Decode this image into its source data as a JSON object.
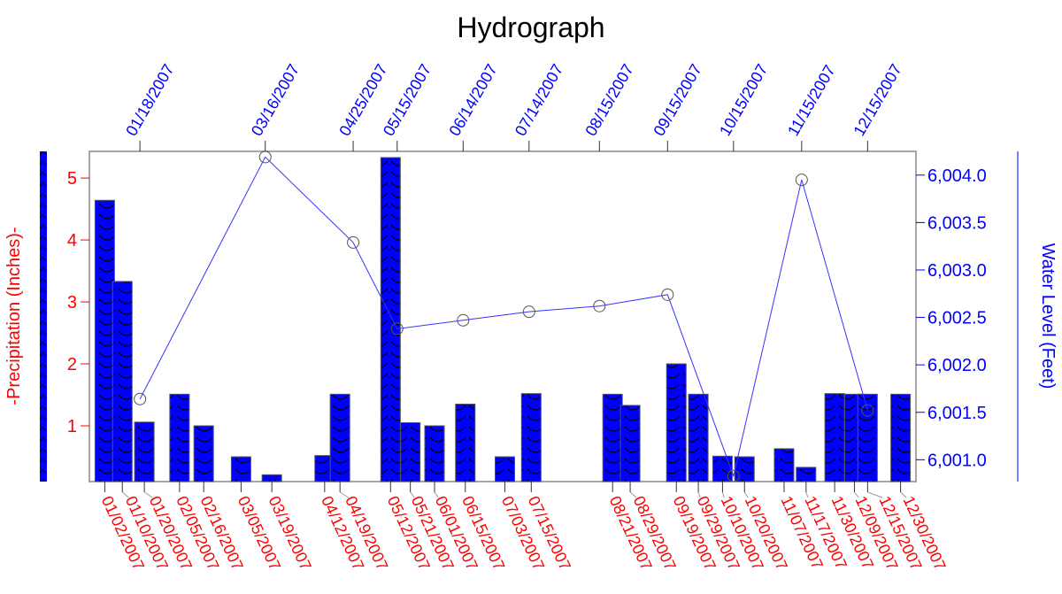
{
  "chart_data": {
    "type": "bar+line",
    "title": "Hydrograph",
    "xlim": [
      "2006-12-26",
      "2008-01-06"
    ],
    "precipitation": {
      "axis": "left",
      "ylabel": "-Precipitation (Inches)-",
      "ylim": [
        0.1,
        5.43
      ],
      "yticks": [
        "1",
        "2",
        "3",
        "4",
        "5"
      ],
      "color": "#0000ff",
      "label_color": "#ff0000",
      "dates": [
        "01/02/2007",
        "01/10/2007",
        "01/20/2007",
        "02/05/2007",
        "02/16/2007",
        "03/05/2007",
        "03/19/2007",
        "04/12/2007",
        "04/19/2007",
        "05/12/2007",
        "05/21/2007",
        "06/01/2007",
        "06/15/2007",
        "07/03/2007",
        "07/15/2007",
        "08/21/2007",
        "08/29/2007",
        "09/19/2007",
        "09/29/2007",
        "10/10/2007",
        "10/20/2007",
        "11/07/2007",
        "11/17/2007",
        "11/30/2007",
        "12/09/2007",
        "12/15/2007",
        "12/30/2007"
      ],
      "values": [
        4.64,
        3.33,
        1.06,
        1.51,
        1.0,
        0.5,
        0.21,
        0.52,
        1.51,
        5.33,
        1.05,
        1.0,
        1.35,
        0.5,
        1.52,
        1.51,
        1.33,
        2.0,
        1.51,
        0.51,
        0.5,
        0.63,
        0.33,
        1.52,
        1.51,
        1.51,
        1.51
      ]
    },
    "water_level": {
      "axis": "right",
      "ylabel": "Water Level (Feet)",
      "ylim": [
        6000.77,
        6004.25
      ],
      "yticks": [
        "6,001.0",
        "6,001.5",
        "6,002.0",
        "6,002.5",
        "6,003.0",
        "6,003.5",
        "6,004.0"
      ],
      "color": "#0000ff",
      "dates": [
        "01/18/2007",
        "03/16/2007",
        "04/25/2007",
        "05/15/2007",
        "06/14/2007",
        "07/14/2007",
        "08/15/2007",
        "09/15/2007",
        "10/15/2007",
        "11/15/2007",
        "12/15/2007"
      ],
      "values": [
        6001.64,
        6004.19,
        6003.29,
        6002.38,
        6002.47,
        6002.56,
        6002.62,
        6002.74,
        6000.83,
        6003.95,
        6001.52
      ]
    },
    "grid": false
  }
}
